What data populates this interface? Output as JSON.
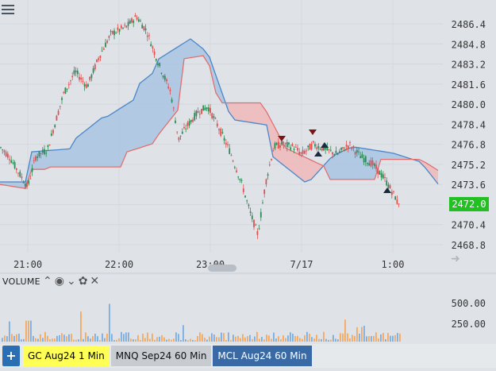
{
  "chart": {
    "price_axis_labels": [
      "2486.4",
      "2484.8",
      "2483.2",
      "2481.6",
      "2480.0",
      "2478.4",
      "2476.8",
      "2475.2",
      "2473.6",
      "2472.0",
      "2470.4",
      "2468.8"
    ],
    "price_axis_values": [
      2486.4,
      2484.8,
      2483.2,
      2481.6,
      2480.0,
      2478.4,
      2476.8,
      2475.2,
      2473.6,
      2472.0,
      2470.4,
      2468.8
    ],
    "time_axis_labels": [
      "21:00",
      "22:00",
      "23:00",
      "7/17",
      "1:00"
    ],
    "current_price": "2472.0",
    "volume_title": "VOLUME",
    "volume_axis_labels": [
      "500.00",
      "250.00"
    ]
  },
  "tabs": {
    "add_label": "+",
    "items": [
      {
        "label": "GC Aug24 1 Min"
      },
      {
        "label": "MNQ Sep24 60 Min"
      },
      {
        "label": "MCL Aug24 60 Min"
      }
    ]
  },
  "colors": {
    "bull": "#2e8b57",
    "bear": "#e05050",
    "cloud_blue": "#a9c4e0",
    "cloud_red": "#f0b8b8",
    "line_blue": "#4a86c8",
    "line_red": "#e07070",
    "volume_orange": "#f4a860",
    "volume_blue": "#7aaee0",
    "current_price_bg": "#22c022"
  },
  "icons": [
    "menu-icon",
    "chevron-up-icon",
    "eye-icon",
    "chevron-down-icon",
    "gear-icon",
    "close-icon",
    "plus-icon",
    "arrow-right-icon"
  ]
}
